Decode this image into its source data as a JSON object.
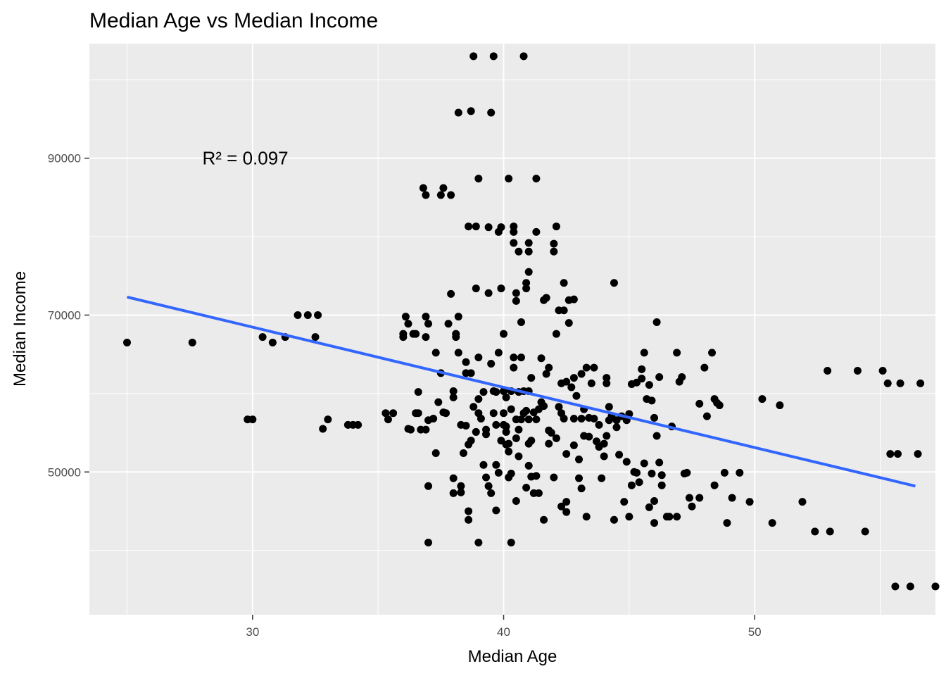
{
  "chart_data": {
    "type": "scatter",
    "title": "Median Age vs Median Income",
    "xlabel": "Median Age",
    "ylabel": "Median Income",
    "xlim": [
      23.5,
      57.2
    ],
    "ylim": [
      31800,
      104600
    ],
    "x_ticks": [
      30,
      40,
      50
    ],
    "x_tick_labels": [
      "30",
      "40",
      "50"
    ],
    "x_minor": [
      25,
      35,
      45,
      55
    ],
    "y_ticks": [
      50000,
      70000,
      90000
    ],
    "y_tick_labels": [
      "50000",
      "70000",
      "90000"
    ],
    "y_minor": [
      40000,
      60000,
      80000,
      100000
    ],
    "annotation": {
      "text": "R² = 0.097",
      "x": 28.0,
      "y": 90000
    },
    "trend_line": {
      "color": "#3366FF",
      "x": [
        25.0,
        56.4
      ],
      "y": [
        72300,
        48200
      ]
    },
    "colors": {
      "panel": "#EBEBEB",
      "point": "#000000",
      "grid": "#FFFFFF"
    },
    "points": [
      [
        25.0,
        66500
      ],
      [
        27.6,
        66500
      ],
      [
        29.8,
        56700
      ],
      [
        30.0,
        56700
      ],
      [
        30.4,
        67200
      ],
      [
        30.8,
        66500
      ],
      [
        31.3,
        67200
      ],
      [
        31.8,
        70000
      ],
      [
        32.2,
        70000
      ],
      [
        32.6,
        70000
      ],
      [
        32.5,
        67200
      ],
      [
        32.8,
        55500
      ],
      [
        33.0,
        56700
      ],
      [
        33.8,
        56000
      ],
      [
        34.0,
        56000
      ],
      [
        34.2,
        56000
      ],
      [
        35.3,
        57500
      ],
      [
        35.4,
        56700
      ],
      [
        35.6,
        57500
      ],
      [
        36.0,
        67200
      ],
      [
        36.0,
        67600
      ],
      [
        36.1,
        69800
      ],
      [
        36.2,
        68900
      ],
      [
        36.2,
        55500
      ],
      [
        36.3,
        55400
      ],
      [
        36.4,
        67600
      ],
      [
        36.5,
        57500
      ],
      [
        36.5,
        67600
      ],
      [
        36.6,
        60200
      ],
      [
        36.6,
        57500
      ],
      [
        36.7,
        55400
      ],
      [
        36.8,
        86200
      ],
      [
        36.9,
        85300
      ],
      [
        36.9,
        69800
      ],
      [
        36.9,
        67200
      ],
      [
        36.9,
        55400
      ],
      [
        37.0,
        56600
      ],
      [
        37.0,
        48200
      ],
      [
        37.0,
        68900
      ],
      [
        37.0,
        41000
      ],
      [
        37.2,
        56800
      ],
      [
        37.3,
        65200
      ],
      [
        37.3,
        52400
      ],
      [
        37.4,
        58900
      ],
      [
        37.5,
        85300
      ],
      [
        37.6,
        86200
      ],
      [
        37.5,
        62600
      ],
      [
        37.6,
        57600
      ],
      [
        37.7,
        57500
      ],
      [
        37.8,
        68900
      ],
      [
        37.9,
        72700
      ],
      [
        37.9,
        85300
      ],
      [
        38.0,
        59500
      ],
      [
        38.0,
        60300
      ],
      [
        38.0,
        49200
      ],
      [
        38.0,
        47300
      ],
      [
        38.1,
        67200
      ],
      [
        38.1,
        67600
      ],
      [
        38.2,
        65200
      ],
      [
        38.2,
        69800
      ],
      [
        38.2,
        95800
      ],
      [
        38.3,
        48200
      ],
      [
        38.3,
        47400
      ],
      [
        38.3,
        56000
      ],
      [
        38.4,
        52400
      ],
      [
        38.5,
        64000
      ],
      [
        38.5,
        62600
      ],
      [
        38.5,
        55900
      ],
      [
        38.6,
        53500
      ],
      [
        38.6,
        45000
      ],
      [
        38.6,
        43900
      ],
      [
        38.6,
        81300
      ],
      [
        38.7,
        62600
      ],
      [
        38.7,
        96000
      ],
      [
        38.7,
        54000
      ],
      [
        38.8,
        103000
      ],
      [
        38.8,
        58300
      ],
      [
        38.9,
        81300
      ],
      [
        38.9,
        73400
      ],
      [
        38.9,
        55100
      ],
      [
        39.0,
        59300
      ],
      [
        39.0,
        64600
      ],
      [
        39.0,
        87400
      ],
      [
        39.0,
        41000
      ],
      [
        39.0,
        57500
      ],
      [
        39.1,
        56800
      ],
      [
        39.2,
        50900
      ],
      [
        39.2,
        60200
      ],
      [
        39.3,
        54800
      ],
      [
        39.3,
        55400
      ],
      [
        39.3,
        49300
      ],
      [
        39.4,
        48200
      ],
      [
        39.4,
        72800
      ],
      [
        39.4,
        81200
      ],
      [
        39.5,
        95800
      ],
      [
        39.5,
        63800
      ],
      [
        39.5,
        47300
      ],
      [
        39.6,
        57500
      ],
      [
        39.6,
        60300
      ],
      [
        39.7,
        60200
      ],
      [
        39.6,
        103000
      ],
      [
        39.7,
        56000
      ],
      [
        39.7,
        45100
      ],
      [
        39.7,
        50900
      ],
      [
        39.8,
        49900
      ],
      [
        39.8,
        80600
      ],
      [
        39.8,
        65200
      ],
      [
        39.9,
        81200
      ],
      [
        39.9,
        73400
      ],
      [
        39.9,
        54000
      ],
      [
        40.0,
        57500
      ],
      [
        40.0,
        56000
      ],
      [
        40.0,
        60300
      ],
      [
        40.0,
        67600
      ],
      [
        40.1,
        53500
      ],
      [
        40.1,
        55800
      ],
      [
        40.1,
        59500
      ],
      [
        40.1,
        55100
      ],
      [
        40.2,
        52600
      ],
      [
        40.2,
        49300
      ],
      [
        40.2,
        87400
      ],
      [
        40.2,
        53600
      ],
      [
        40.3,
        41000
      ],
      [
        40.3,
        49800
      ],
      [
        40.3,
        58000
      ],
      [
        40.3,
        60300
      ],
      [
        40.4,
        81300
      ],
      [
        40.4,
        63300
      ],
      [
        40.4,
        79200
      ],
      [
        40.4,
        80600
      ],
      [
        40.4,
        64600
      ],
      [
        40.5,
        46300
      ],
      [
        40.5,
        72800
      ],
      [
        40.5,
        71800
      ],
      [
        40.5,
        56700
      ],
      [
        40.5,
        54300
      ],
      [
        40.6,
        78100
      ],
      [
        40.6,
        55400
      ],
      [
        40.6,
        52000
      ],
      [
        40.6,
        60200
      ],
      [
        40.7,
        69100
      ],
      [
        40.7,
        56700
      ],
      [
        40.7,
        64600
      ],
      [
        40.8,
        103000
      ],
      [
        40.8,
        57500
      ],
      [
        40.8,
        60300
      ],
      [
        40.9,
        57800
      ],
      [
        40.9,
        73400
      ],
      [
        40.9,
        74100
      ],
      [
        40.9,
        48000
      ],
      [
        41.0,
        78100
      ],
      [
        41.0,
        79200
      ],
      [
        41.0,
        75500
      ],
      [
        41.0,
        50800
      ],
      [
        41.0,
        56700
      ],
      [
        41.0,
        53600
      ],
      [
        41.0,
        60300
      ],
      [
        41.1,
        54000
      ],
      [
        41.1,
        62000
      ],
      [
        41.1,
        49400
      ],
      [
        41.2,
        57600
      ],
      [
        41.3,
        80600
      ],
      [
        41.2,
        47300
      ],
      [
        41.3,
        56700
      ],
      [
        41.3,
        49500
      ],
      [
        41.3,
        87400
      ],
      [
        41.4,
        47300
      ],
      [
        41.4,
        58000
      ],
      [
        41.5,
        58900
      ],
      [
        41.5,
        64500
      ],
      [
        41.6,
        43900
      ],
      [
        41.6,
        71900
      ],
      [
        41.6,
        58400
      ],
      [
        41.7,
        62500
      ],
      [
        41.7,
        72200
      ],
      [
        41.8,
        63300
      ],
      [
        41.8,
        53600
      ],
      [
        41.8,
        55300
      ],
      [
        41.9,
        55000
      ],
      [
        42.0,
        78100
      ],
      [
        42.0,
        79100
      ],
      [
        42.0,
        49300
      ],
      [
        42.1,
        81300
      ],
      [
        42.1,
        67600
      ],
      [
        42.1,
        54300
      ],
      [
        42.2,
        70600
      ],
      [
        42.2,
        58300
      ],
      [
        42.3,
        45600
      ],
      [
        42.3,
        61300
      ],
      [
        42.3,
        57500
      ],
      [
        42.4,
        70600
      ],
      [
        42.4,
        74100
      ],
      [
        42.4,
        56800
      ],
      [
        42.5,
        61500
      ],
      [
        42.5,
        52300
      ],
      [
        42.5,
        46200
      ],
      [
        42.5,
        44900
      ],
      [
        42.6,
        71900
      ],
      [
        42.6,
        69000
      ],
      [
        42.7,
        60800
      ],
      [
        42.8,
        56800
      ],
      [
        42.8,
        53400
      ],
      [
        42.8,
        62000
      ],
      [
        42.8,
        72000
      ],
      [
        42.9,
        59700
      ],
      [
        43.0,
        51600
      ],
      [
        43.0,
        49200
      ],
      [
        43.1,
        62500
      ],
      [
        43.1,
        47900
      ],
      [
        43.1,
        56800
      ],
      [
        43.2,
        58000
      ],
      [
        43.2,
        54600
      ],
      [
        43.3,
        63300
      ],
      [
        43.3,
        44300
      ],
      [
        43.4,
        56900
      ],
      [
        43.4,
        54500
      ],
      [
        43.5,
        61300
      ],
      [
        43.6,
        63300
      ],
      [
        43.6,
        56800
      ],
      [
        43.7,
        53900
      ],
      [
        43.8,
        53200
      ],
      [
        43.8,
        56000
      ],
      [
        43.9,
        49200
      ],
      [
        44.0,
        52000
      ],
      [
        44.0,
        53600
      ],
      [
        44.1,
        62000
      ],
      [
        44.1,
        61300
      ],
      [
        44.1,
        54600
      ],
      [
        44.2,
        56600
      ],
      [
        44.2,
        58300
      ],
      [
        44.3,
        57100
      ],
      [
        44.4,
        43900
      ],
      [
        44.4,
        74100
      ],
      [
        44.5,
        56600
      ],
      [
        44.5,
        55700
      ],
      [
        44.6,
        52200
      ],
      [
        44.7,
        57100
      ],
      [
        44.8,
        46200
      ],
      [
        44.9,
        51300
      ],
      [
        44.9,
        56600
      ],
      [
        45.0,
        57400
      ],
      [
        45.0,
        44300
      ],
      [
        45.1,
        48300
      ],
      [
        45.1,
        61200
      ],
      [
        45.2,
        50000
      ],
      [
        45.3,
        61400
      ],
      [
        45.3,
        49900
      ],
      [
        45.4,
        48700
      ],
      [
        45.5,
        63100
      ],
      [
        45.5,
        61900
      ],
      [
        45.6,
        65200
      ],
      [
        45.6,
        51100
      ],
      [
        45.7,
        59300
      ],
      [
        45.8,
        45500
      ],
      [
        45.8,
        61100
      ],
      [
        45.9,
        59100
      ],
      [
        45.9,
        49800
      ],
      [
        46.0,
        56900
      ],
      [
        46.0,
        43500
      ],
      [
        46.0,
        46300
      ],
      [
        46.1,
        54600
      ],
      [
        46.1,
        69100
      ],
      [
        46.2,
        62100
      ],
      [
        46.2,
        51200
      ],
      [
        46.3,
        48300
      ],
      [
        46.3,
        49600
      ],
      [
        46.5,
        44300
      ],
      [
        46.6,
        44300
      ],
      [
        46.7,
        55800
      ],
      [
        46.9,
        65200
      ],
      [
        46.9,
        44300
      ],
      [
        47.0,
        61500
      ],
      [
        47.1,
        62100
      ],
      [
        47.2,
        49800
      ],
      [
        47.3,
        49900
      ],
      [
        47.4,
        46700
      ],
      [
        47.5,
        45600
      ],
      [
        47.8,
        58700
      ],
      [
        47.8,
        46700
      ],
      [
        48.0,
        63300
      ],
      [
        48.1,
        57100
      ],
      [
        48.3,
        65200
      ],
      [
        48.4,
        48300
      ],
      [
        48.4,
        59300
      ],
      [
        48.5,
        58800
      ],
      [
        48.6,
        58500
      ],
      [
        48.8,
        49900
      ],
      [
        48.9,
        43500
      ],
      [
        49.1,
        46700
      ],
      [
        49.4,
        49900
      ],
      [
        49.8,
        46200
      ],
      [
        50.3,
        59300
      ],
      [
        50.7,
        43500
      ],
      [
        51.0,
        58500
      ],
      [
        51.9,
        46200
      ],
      [
        52.4,
        42400
      ],
      [
        52.9,
        62900
      ],
      [
        53.0,
        42400
      ],
      [
        54.1,
        62900
      ],
      [
        54.4,
        42400
      ],
      [
        55.1,
        62900
      ],
      [
        55.3,
        61300
      ],
      [
        55.4,
        52300
      ],
      [
        55.6,
        35400
      ],
      [
        55.7,
        52300
      ],
      [
        55.8,
        61300
      ],
      [
        56.2,
        35400
      ],
      [
        56.5,
        52300
      ],
      [
        56.6,
        61300
      ],
      [
        57.2,
        35400
      ]
    ]
  }
}
